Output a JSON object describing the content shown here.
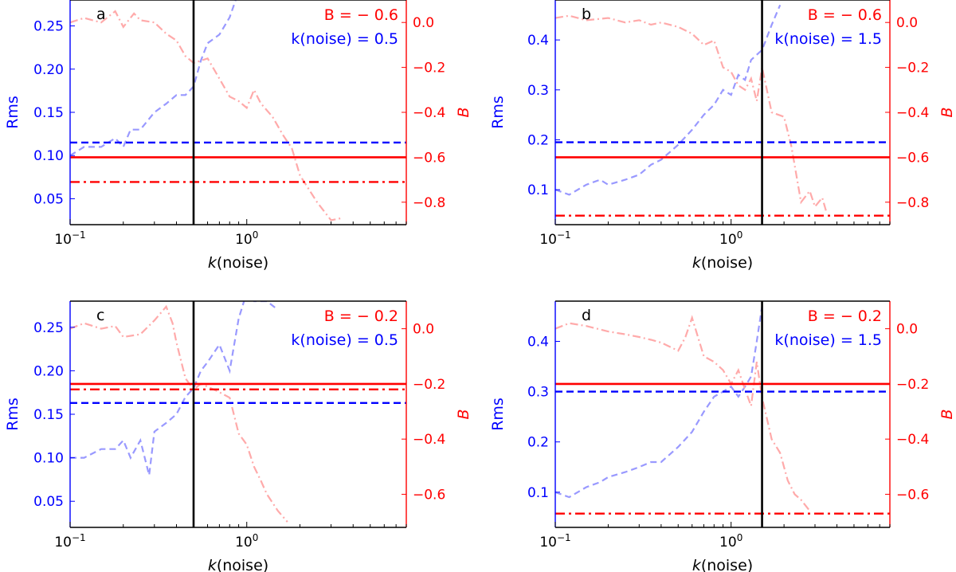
{
  "colors": {
    "rms": "#0000ff",
    "b": "#ff0000",
    "rms_light": "#9999ff",
    "b_light": "#ffaaaa",
    "frame": "#000000"
  },
  "shared": {
    "xlabel_k": "k",
    "xlabel_rest": "(noise)",
    "ylabel_left": "Rms",
    "ylabel_right": "B",
    "xscale": "log",
    "xlim": [
      0.1,
      8.0
    ],
    "x_ticks": [
      {
        "value": 0.1,
        "base": "10",
        "exp": "−1"
      },
      {
        "value": 1.0,
        "base": "10",
        "exp": "0"
      }
    ]
  },
  "chart_data": [
    {
      "type": "line",
      "panel": "a",
      "annot_b": "B = − 0.6",
      "annot_k": "k(noise) = 0.5",
      "k_mark": 0.5,
      "ylim_left": [
        0.02,
        0.28
      ],
      "ylim_right": [
        -0.9,
        0.1
      ],
      "left_ticks": [
        "0.25",
        "0.20",
        "0.15",
        "0.10",
        "0.05"
      ],
      "left_tick_values": [
        0.25,
        0.2,
        0.15,
        0.1,
        0.05
      ],
      "right_ticks": [
        "0.0",
        "−0.2",
        "−0.4",
        "−0.6",
        "−0.8"
      ],
      "right_tick_values": [
        0.0,
        -0.2,
        -0.4,
        -0.6,
        -0.8
      ],
      "rms_ref": 0.115,
      "b_ref_solid": -0.6,
      "b_ref_dashdot": -0.71,
      "rms_curve": {
        "x": [
          0.1,
          0.12,
          0.15,
          0.18,
          0.2,
          0.22,
          0.25,
          0.3,
          0.35,
          0.4,
          0.45,
          0.5,
          0.55,
          0.6,
          0.7,
          0.8,
          0.9
        ],
        "y": [
          0.1,
          0.11,
          0.11,
          0.12,
          0.11,
          0.13,
          0.13,
          0.15,
          0.16,
          0.17,
          0.17,
          0.18,
          0.21,
          0.23,
          0.24,
          0.26,
          0.29
        ]
      },
      "b_curve": {
        "x": [
          0.1,
          0.12,
          0.15,
          0.18,
          0.2,
          0.23,
          0.25,
          0.3,
          0.35,
          0.4,
          0.45,
          0.5,
          0.55,
          0.6,
          0.7,
          0.8,
          0.9,
          1.0,
          1.1,
          1.2,
          1.4,
          1.6,
          1.8,
          2.0,
          2.5,
          3.0,
          3.5
        ],
        "y": [
          0.0,
          0.02,
          0.0,
          0.05,
          -0.02,
          0.04,
          0.01,
          0.0,
          -0.05,
          -0.08,
          -0.15,
          -0.18,
          -0.17,
          -0.16,
          -0.25,
          -0.33,
          -0.35,
          -0.38,
          -0.3,
          -0.36,
          -0.42,
          -0.5,
          -0.56,
          -0.68,
          -0.8,
          -0.88,
          -0.87
        ]
      }
    },
    {
      "type": "line",
      "panel": "b",
      "annot_b": "B = − 0.6",
      "annot_k": "k(noise) = 1.5",
      "k_mark": 1.5,
      "ylim_left": [
        0.03,
        0.48
      ],
      "ylim_right": [
        -0.9,
        0.1
      ],
      "left_ticks": [
        "0.4",
        "0.3",
        "0.2",
        "0.1"
      ],
      "left_tick_values": [
        0.4,
        0.3,
        0.2,
        0.1
      ],
      "right_ticks": [
        "0.0",
        "−0.2",
        "−0.4",
        "−0.6",
        "−0.8"
      ],
      "right_tick_values": [
        0.0,
        -0.2,
        -0.4,
        -0.6,
        -0.8
      ],
      "rms_ref": 0.195,
      "b_ref_solid": -0.6,
      "b_ref_dashdot": -0.86,
      "rms_curve": {
        "x": [
          0.1,
          0.12,
          0.15,
          0.18,
          0.2,
          0.25,
          0.3,
          0.35,
          0.4,
          0.5,
          0.6,
          0.7,
          0.8,
          0.9,
          1.0,
          1.1,
          1.2,
          1.3,
          1.5,
          1.7,
          1.9
        ],
        "y": [
          0.1,
          0.09,
          0.11,
          0.12,
          0.11,
          0.12,
          0.13,
          0.15,
          0.16,
          0.19,
          0.22,
          0.25,
          0.27,
          0.3,
          0.29,
          0.33,
          0.32,
          0.36,
          0.38,
          0.43,
          0.47
        ]
      },
      "b_curve": {
        "x": [
          0.1,
          0.12,
          0.15,
          0.2,
          0.25,
          0.3,
          0.35,
          0.4,
          0.5,
          0.6,
          0.7,
          0.8,
          0.9,
          1.0,
          1.1,
          1.2,
          1.3,
          1.4,
          1.5,
          1.7,
          2.0,
          2.2,
          2.5,
          2.8,
          3.0,
          3.3,
          3.5
        ],
        "y": [
          0.02,
          0.03,
          0.01,
          0.02,
          0.0,
          0.01,
          -0.01,
          0.0,
          -0.02,
          -0.05,
          -0.1,
          -0.08,
          -0.2,
          -0.22,
          -0.28,
          -0.3,
          -0.25,
          -0.35,
          -0.2,
          -0.4,
          -0.42,
          -0.55,
          -0.8,
          -0.75,
          -0.82,
          -0.78,
          -0.85
        ]
      }
    },
    {
      "type": "line",
      "panel": "c",
      "annot_b": "B = − 0.2",
      "annot_k": "k(noise) = 0.5",
      "k_mark": 0.5,
      "ylim_left": [
        0.02,
        0.28
      ],
      "ylim_right": [
        -0.72,
        0.1
      ],
      "left_ticks": [
        "0.25",
        "0.20",
        "0.15",
        "0.10",
        "0.05"
      ],
      "left_tick_values": [
        0.25,
        0.2,
        0.15,
        0.1,
        0.05
      ],
      "right_ticks": [
        "0.0",
        "−0.2",
        "−0.4",
        "−0.6"
      ],
      "right_tick_values": [
        0.0,
        -0.2,
        -0.4,
        -0.6
      ],
      "rms_ref": 0.163,
      "b_ref_solid": -0.2,
      "b_ref_dashdot": -0.22,
      "rms_curve": {
        "x": [
          0.1,
          0.12,
          0.15,
          0.18,
          0.2,
          0.22,
          0.25,
          0.28,
          0.3,
          0.35,
          0.4,
          0.45,
          0.5,
          0.55,
          0.6,
          0.7,
          0.8,
          0.9,
          1.0,
          1.1,
          1.3,
          1.5
        ],
        "y": [
          0.1,
          0.1,
          0.11,
          0.11,
          0.12,
          0.1,
          0.12,
          0.08,
          0.13,
          0.14,
          0.15,
          0.17,
          0.18,
          0.2,
          0.21,
          0.23,
          0.2,
          0.26,
          0.29,
          0.28,
          0.28,
          0.27
        ]
      },
      "b_curve": {
        "x": [
          0.1,
          0.12,
          0.15,
          0.18,
          0.2,
          0.25,
          0.3,
          0.35,
          0.38,
          0.4,
          0.45,
          0.5,
          0.55,
          0.6,
          0.7,
          0.8,
          0.9,
          1.0,
          1.1,
          1.2,
          1.3,
          1.5,
          1.7
        ],
        "y": [
          0.0,
          0.02,
          0.0,
          0.01,
          -0.03,
          -0.02,
          0.03,
          0.08,
          0.02,
          -0.05,
          -0.18,
          -0.22,
          -0.2,
          -0.21,
          -0.23,
          -0.25,
          -0.38,
          -0.42,
          -0.5,
          -0.55,
          -0.6,
          -0.66,
          -0.7
        ]
      }
    },
    {
      "type": "line",
      "panel": "d",
      "annot_b": "B = − 0.2",
      "annot_k": "k(noise) = 1.5",
      "k_mark": 1.5,
      "ylim_left": [
        0.03,
        0.48
      ],
      "ylim_right": [
        -0.72,
        0.1
      ],
      "left_ticks": [
        "0.4",
        "0.3",
        "0.2",
        "0.1"
      ],
      "left_tick_values": [
        0.4,
        0.3,
        0.2,
        0.1
      ],
      "right_ticks": [
        "0.0",
        "−0.2",
        "−0.4",
        "−0.6"
      ],
      "right_tick_values": [
        0.0,
        -0.2,
        -0.4,
        -0.6
      ],
      "rms_ref": 0.3,
      "b_ref_solid": -0.2,
      "b_ref_dashdot": -0.67,
      "rms_curve": {
        "x": [
          0.1,
          0.12,
          0.15,
          0.18,
          0.2,
          0.25,
          0.3,
          0.35,
          0.4,
          0.5,
          0.6,
          0.7,
          0.8,
          0.9,
          1.0,
          1.1,
          1.2,
          1.3,
          1.4,
          1.5
        ],
        "y": [
          0.1,
          0.09,
          0.11,
          0.12,
          0.13,
          0.14,
          0.15,
          0.16,
          0.16,
          0.19,
          0.22,
          0.26,
          0.29,
          0.3,
          0.31,
          0.29,
          0.31,
          0.33,
          0.4,
          0.47
        ]
      },
      "b_curve": {
        "x": [
          0.1,
          0.12,
          0.15,
          0.2,
          0.25,
          0.3,
          0.35,
          0.4,
          0.5,
          0.55,
          0.6,
          0.7,
          0.8,
          0.9,
          1.0,
          1.1,
          1.2,
          1.3,
          1.4,
          1.5,
          1.7,
          1.9,
          2.1,
          2.3,
          2.5,
          2.8
        ],
        "y": [
          0.0,
          0.02,
          0.01,
          -0.01,
          -0.02,
          -0.03,
          -0.04,
          -0.05,
          -0.08,
          -0.03,
          0.04,
          -0.1,
          -0.12,
          -0.15,
          -0.2,
          -0.15,
          -0.22,
          -0.28,
          -0.12,
          -0.25,
          -0.4,
          -0.45,
          -0.55,
          -0.6,
          -0.62,
          -0.66
        ]
      }
    }
  ]
}
